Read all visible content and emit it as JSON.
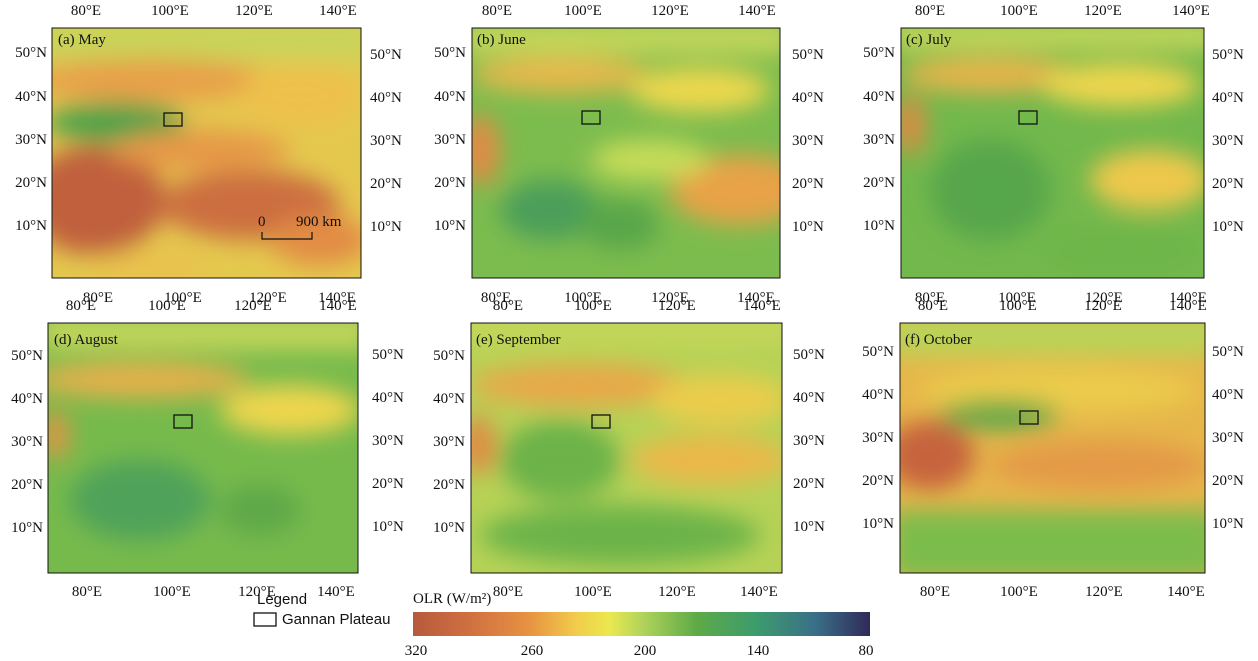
{
  "figure": {
    "legend": {
      "heading": "Legend",
      "item_label": "Gannan Plateau"
    },
    "colorbar": {
      "title": "OLR (W/m²)",
      "ticks": [
        "320",
        "260",
        "200",
        "140",
        "80"
      ],
      "values": [
        320,
        260,
        200,
        140,
        80
      ],
      "colors": [
        "#b65a3c",
        "#cf6f41",
        "#e69142",
        "#f2cd4b",
        "#ebe84f",
        "#b2d45c",
        "#5faa47",
        "#3c9c6c",
        "#3b6f88",
        "#2f2a58"
      ]
    },
    "scale_bar": {
      "start_label": "0",
      "end_label": "900 km"
    }
  },
  "map_panels": [
    {
      "id": "a",
      "label": "(a) May",
      "lon_ticks": [
        "80°E",
        "100°E",
        "120°E",
        "140°E"
      ],
      "lat_ticks": [
        "50°N",
        "40°N",
        "30°N",
        "20°N",
        "10°N"
      ]
    },
    {
      "id": "b",
      "label": "(b) June",
      "lon_ticks": [
        "80°E",
        "100°E",
        "120°E",
        "140°E"
      ],
      "lat_ticks": [
        "50°N",
        "40°N",
        "30°N",
        "20°N",
        "10°N"
      ]
    },
    {
      "id": "c",
      "label": "(c) July",
      "lon_ticks": [
        "80°E",
        "100°E",
        "120°E",
        "140°E"
      ],
      "lat_ticks": [
        "50°N",
        "40°N",
        "30°N",
        "20°N",
        "10°N"
      ]
    },
    {
      "id": "d",
      "label": "(d) August",
      "lon_ticks": [
        "80°E",
        "100°E",
        "120°E",
        "140°E"
      ],
      "lat_ticks": [
        "50°N",
        "40°N",
        "30°N",
        "20°N",
        "10°N"
      ]
    },
    {
      "id": "e",
      "label": "(e) September",
      "lon_ticks": [
        "80°E",
        "100°E",
        "120°E",
        "140°E"
      ],
      "lat_ticks": [
        "50°N",
        "40°N",
        "30°N",
        "20°N",
        "10°N"
      ]
    },
    {
      "id": "f",
      "label": "(f) October",
      "lon_ticks": [
        "80°E",
        "100°E",
        "120°E",
        "140°E"
      ],
      "lat_ticks": [
        "50°N",
        "40°N",
        "30°N",
        "20°N",
        "10°N"
      ]
    }
  ]
}
